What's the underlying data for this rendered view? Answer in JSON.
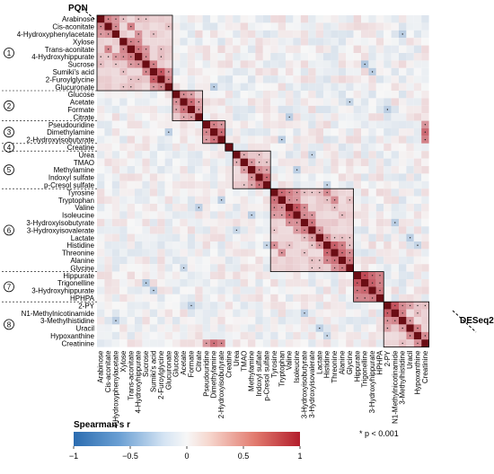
{
  "corner_labels": {
    "top_left": "PQN",
    "bottom_right": "DESeq2"
  },
  "legend": {
    "title": "Spearman's r",
    "ticks": [
      "−1",
      "−0.5",
      "0",
      "0.5",
      "1"
    ],
    "significance_note": "* p < 0.001",
    "colormap": [
      "#2b6cb0",
      "#6a9fd3",
      "#b6d0ea",
      "#f7f7f7",
      "#f3c1b5",
      "#e27b6f",
      "#b31e2c"
    ]
  },
  "chart_data": {
    "type": "heatmap",
    "title": "",
    "value_range": [
      -1,
      1
    ],
    "metabolites": [
      "Arabinose",
      "Cis-aconitate",
      "4-Hydroxyphenylacetate",
      "Xylose",
      "Trans-aconitate",
      "4-Hydroxyhippurate",
      "Sucrose",
      "Sumiki's acid",
      "2-Furoylglycine",
      "Glucuronate",
      "Glucose",
      "Acetate",
      "Formate",
      "Citrate",
      "Pseudouridine",
      "Dimethylamine",
      "2-Hydroxyisobutyrate",
      "Creatine",
      "Urea",
      "TMAO",
      "Methylamine",
      "Indoxyl sulfate",
      "p-Cresol sulfate",
      "Tyrosine",
      "Tryptophan",
      "Valine",
      "Isoleucine",
      "3-Hydroxyisobutyrate",
      "3-Hydroxyisovalerate",
      "Lactate",
      "Histidine",
      "Threonine",
      "Alanine",
      "Glycine",
      "Hippurate",
      "Trigonelline",
      "3-Hydroxyhippurate",
      "HPHPA",
      "2-PY",
      "N1-Methylnicotinamide",
      "3-Methylhistidine",
      "Uracil",
      "Hypoxanthine",
      "Creatinine"
    ],
    "clusters": [
      {
        "id": "1",
        "start": 0,
        "end": 9
      },
      {
        "id": "2",
        "start": 10,
        "end": 13
      },
      {
        "id": "3",
        "start": 14,
        "end": 16
      },
      {
        "id": "4",
        "start": 17,
        "end": 17
      },
      {
        "id": "5",
        "start": 18,
        "end": 22
      },
      {
        "id": "6",
        "start": 23,
        "end": 33
      },
      {
        "id": "7",
        "start": 34,
        "end": 37
      },
      {
        "id": "8",
        "start": 38,
        "end": 43
      }
    ],
    "boxes": [
      {
        "start": 0,
        "end": 9
      },
      {
        "start": 10,
        "end": 13
      },
      {
        "start": 14,
        "end": 16
      },
      {
        "start": 17,
        "end": 17
      },
      {
        "start": 18,
        "end": 22
      },
      {
        "start": 23,
        "end": 33
      },
      {
        "start": 34,
        "end": 37
      },
      {
        "start": 38,
        "end": 43
      }
    ],
    "upper_triangle": "PQN",
    "lower_triangle": "DESeq2",
    "strong_correlations": [
      [
        0,
        1,
        0.55
      ],
      [
        0,
        2,
        0.45
      ],
      [
        1,
        2,
        0.5
      ],
      [
        1,
        4,
        0.55
      ],
      [
        2,
        5,
        0.45
      ],
      [
        3,
        4,
        0.55
      ],
      [
        3,
        5,
        0.5
      ],
      [
        4,
        5,
        0.6
      ],
      [
        4,
        6,
        0.45
      ],
      [
        5,
        6,
        0.5
      ],
      [
        6,
        7,
        0.55
      ],
      [
        7,
        8,
        0.75
      ],
      [
        7,
        9,
        0.45
      ],
      [
        8,
        9,
        0.55
      ],
      [
        10,
        11,
        0.5
      ],
      [
        10,
        12,
        0.4
      ],
      [
        11,
        12,
        0.65
      ],
      [
        11,
        13,
        0.4
      ],
      [
        12,
        13,
        0.45
      ],
      [
        14,
        15,
        0.55
      ],
      [
        14,
        16,
        0.45
      ],
      [
        15,
        16,
        0.65
      ],
      [
        18,
        19,
        0.35
      ],
      [
        19,
        20,
        0.45
      ],
      [
        20,
        21,
        0.5
      ],
      [
        21,
        22,
        0.65
      ],
      [
        20,
        22,
        0.4
      ],
      [
        23,
        24,
        0.65
      ],
      [
        23,
        25,
        0.55
      ],
      [
        24,
        25,
        0.5
      ],
      [
        25,
        26,
        0.75
      ],
      [
        26,
        27,
        0.5
      ],
      [
        27,
        28,
        0.6
      ],
      [
        28,
        29,
        0.45
      ],
      [
        29,
        30,
        0.5
      ],
      [
        30,
        31,
        0.7
      ],
      [
        31,
        32,
        0.65
      ],
      [
        32,
        33,
        0.6
      ],
      [
        30,
        32,
        0.55
      ],
      [
        23,
        30,
        0.5
      ],
      [
        24,
        31,
        0.5
      ],
      [
        25,
        27,
        0.5
      ],
      [
        26,
        28,
        0.45
      ],
      [
        31,
        33,
        0.5
      ],
      [
        24,
        26,
        0.45
      ],
      [
        23,
        26,
        0.45
      ],
      [
        34,
        35,
        0.8
      ],
      [
        34,
        36,
        0.65
      ],
      [
        35,
        36,
        0.7
      ],
      [
        36,
        37,
        0.6
      ],
      [
        34,
        37,
        0.55
      ],
      [
        35,
        37,
        0.55
      ],
      [
        38,
        39,
        0.75
      ],
      [
        38,
        40,
        0.5
      ],
      [
        39,
        40,
        0.55
      ],
      [
        40,
        41,
        0.45
      ],
      [
        41,
        42,
        0.55
      ],
      [
        42,
        43,
        0.5
      ],
      [
        38,
        41,
        0.4
      ],
      [
        15,
        43,
        0.65
      ],
      [
        14,
        43,
        0.45
      ],
      [
        16,
        43,
        0.55
      ],
      [
        6,
        35,
        -0.35
      ],
      [
        7,
        36,
        -0.3
      ],
      [
        9,
        15,
        -0.3
      ],
      [
        13,
        25,
        -0.3
      ],
      [
        16,
        24,
        -0.3
      ],
      [
        2,
        40,
        -0.3
      ],
      [
        11,
        33,
        -0.25
      ],
      [
        20,
        26,
        -0.3
      ],
      [
        22,
        30,
        -0.25
      ],
      [
        27,
        39,
        -0.3
      ],
      [
        29,
        41,
        -0.3
      ],
      [
        30,
        42,
        -0.25
      ],
      [
        18,
        28,
        -0.25
      ],
      [
        12,
        38,
        -0.3
      ]
    ]
  }
}
